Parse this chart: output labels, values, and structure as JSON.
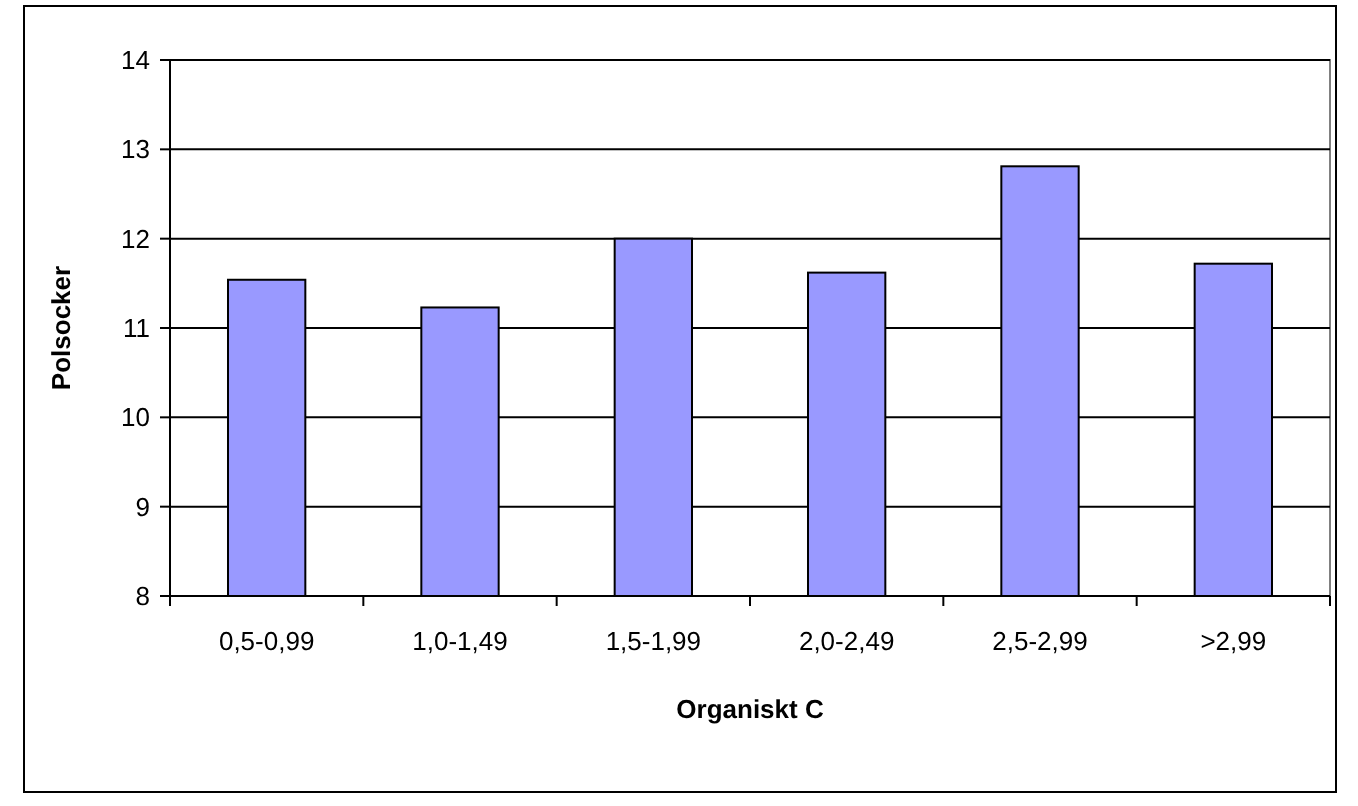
{
  "chart_data": {
    "type": "bar",
    "xlabel": "Organiskt C",
    "ylabel": "Polsocker",
    "categories": [
      "0,5-0,99",
      "1,0-1,49",
      "1,5-1,99",
      "2,0-2,49",
      "2,5-2,99",
      ">2,99"
    ],
    "values": [
      11.54,
      11.23,
      12.0,
      11.62,
      12.81,
      11.72
    ],
    "color": "#9999ff",
    "ylim": [
      8,
      14
    ],
    "yticks": [
      8,
      9,
      10,
      11,
      12,
      13,
      14
    ],
    "grid": "y"
  }
}
